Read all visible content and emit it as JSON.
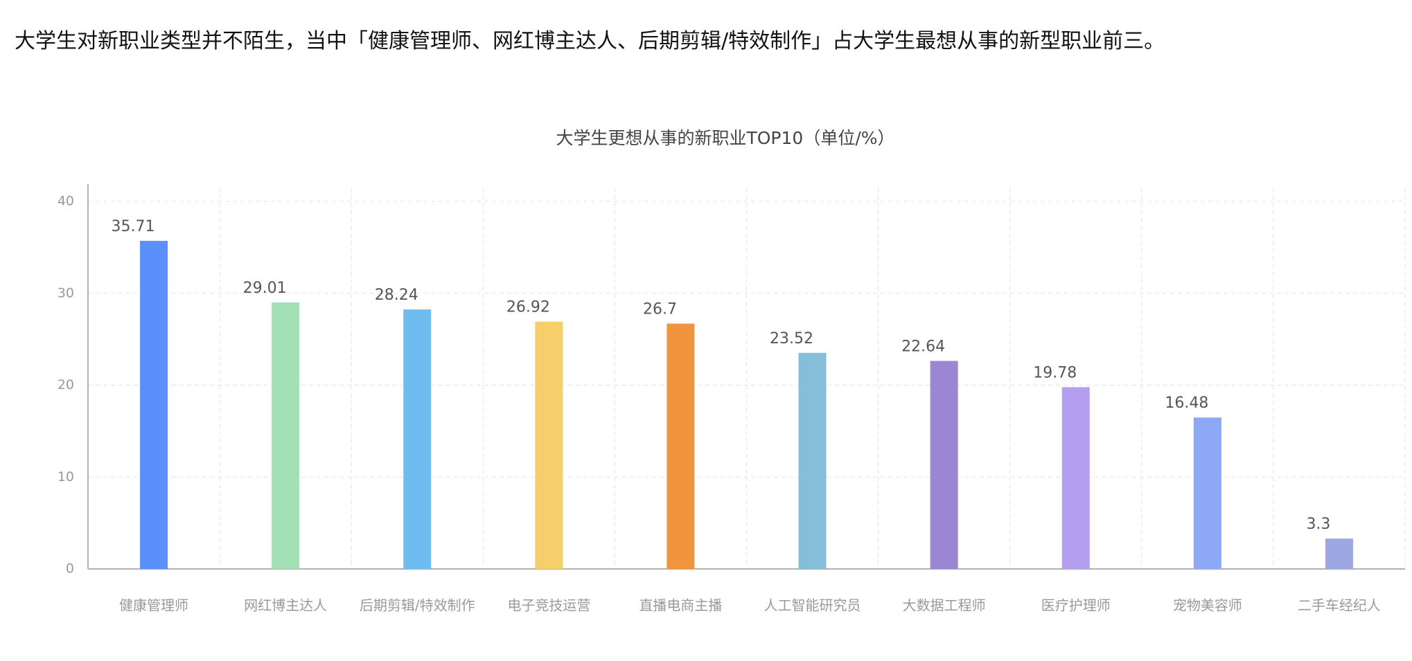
{
  "intro_text": "大学生对新职业类型并不陌生，当中「健康管理师、网红博主达人、后期剪辑/特效制作」占大学生最想从事的新型职业前三。",
  "chart_data": {
    "type": "bar",
    "title": "大学生更想从事的新职业TOP10（单位/%）",
    "categories": [
      "健康管理师",
      "网红博主达人",
      "后期剪辑/特效制作",
      "电子竞技运营",
      "直播电商主播",
      "人工智能研究员",
      "大数据工程师",
      "医疗护理师",
      "宠物美容师",
      "二手车经纪人"
    ],
    "values": [
      35.71,
      29.01,
      28.24,
      26.92,
      26.7,
      23.52,
      22.64,
      19.78,
      16.48,
      3.3
    ],
    "colors": [
      "#5b8ff9",
      "#a4e0b5",
      "#6fbdf0",
      "#f6cf6a",
      "#f0953d",
      "#84bed8",
      "#9b86d3",
      "#b39ef0",
      "#8da8f7",
      "#9da8e3"
    ],
    "ylim": [
      0,
      40
    ],
    "yticks": [
      0,
      10,
      20,
      30,
      40
    ],
    "grid": true
  }
}
